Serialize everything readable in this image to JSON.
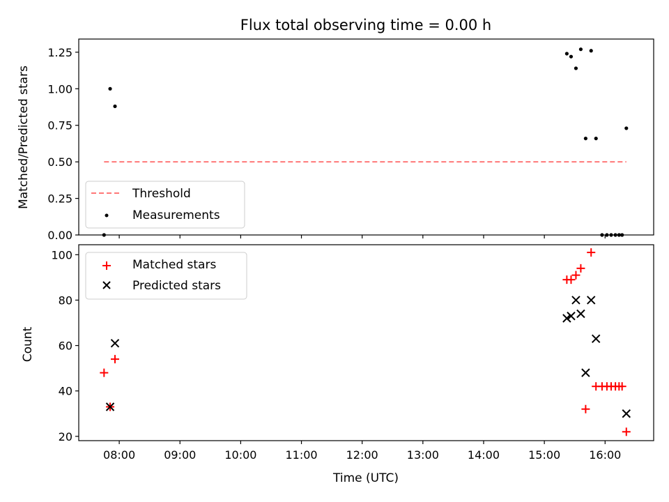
{
  "chart_data": {
    "type": "scatter",
    "title": "Flux total observing time = 0.00 h",
    "xlabel": "Time (UTC)",
    "xlim": [
      7.3333,
      16.8
    ],
    "xticks": [
      "08:00",
      "09:00",
      "10:00",
      "11:00",
      "12:00",
      "13:00",
      "14:00",
      "15:00",
      "16:00"
    ],
    "xtick_values": [
      8,
      9,
      10,
      11,
      12,
      13,
      14,
      15,
      16
    ],
    "top": {
      "ylabel": "Matched/Predicted stars",
      "ylim": [
        0,
        1.34
      ],
      "yticks": [
        "0.00",
        "0.25",
        "0.50",
        "0.75",
        "1.00",
        "1.25"
      ],
      "ytick_values": [
        0,
        0.25,
        0.5,
        0.75,
        1.0,
        1.25
      ],
      "legend": [
        "Threshold",
        "Measurements"
      ],
      "legend_position": "lower-left",
      "threshold": {
        "name": "Threshold",
        "value": 0.5,
        "x_start": 7.75,
        "x_end": 16.35,
        "color": "#ff7777"
      },
      "measurements": {
        "name": "Measurements",
        "color": "#000000",
        "x": [
          7.75,
          7.85,
          7.93,
          15.37,
          15.44,
          15.52,
          15.6,
          15.68,
          15.77,
          15.85,
          15.95,
          16.03,
          16.1,
          16.17,
          16.23,
          16.28,
          16.35
        ],
        "y": [
          0.0,
          1.0,
          0.88,
          1.24,
          1.22,
          1.14,
          1.27,
          0.66,
          1.26,
          0.66,
          0.0,
          0.0,
          0.0,
          0.0,
          0.0,
          0.0,
          0.73
        ]
      }
    },
    "bottom": {
      "ylabel": "Count",
      "ylim": [
        18.1,
        104.4
      ],
      "yticks": [
        "20",
        "40",
        "60",
        "80",
        "100"
      ],
      "ytick_values": [
        20,
        40,
        60,
        80,
        100
      ],
      "legend": [
        "Matched stars",
        "Predicted stars"
      ],
      "legend_position": "upper-left",
      "series": [
        {
          "name": "Matched stars",
          "marker": "plus",
          "color": "#ff0000",
          "x": [
            7.75,
            7.85,
            7.93,
            15.37,
            15.44,
            15.52,
            15.6,
            15.68,
            15.77,
            15.85,
            15.95,
            16.03,
            16.1,
            16.17,
            16.23,
            16.28,
            16.35
          ],
          "y": [
            48,
            33,
            54,
            89,
            89,
            91,
            94,
            32,
            101,
            42,
            42,
            42,
            42,
            42,
            42,
            42,
            22
          ]
        },
        {
          "name": "Predicted stars",
          "marker": "x",
          "color": "#000000",
          "x": [
            7.85,
            7.93,
            15.37,
            15.44,
            15.52,
            15.6,
            15.68,
            15.77,
            15.85,
            16.35
          ],
          "y": [
            33,
            61,
            72,
            73,
            80,
            74,
            48,
            80,
            63,
            30
          ]
        }
      ]
    }
  }
}
